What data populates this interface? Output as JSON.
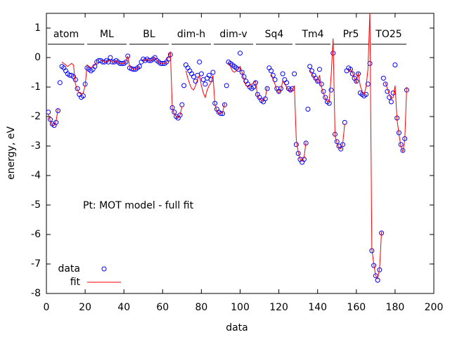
{
  "chart_data": {
    "type": "scatter",
    "xlabel": "data",
    "ylabel": "energy, eV",
    "annotations": [
      "Pt: MOT model - full fit"
    ],
    "groups": [
      "atom",
      "ML",
      "BL",
      "dim-h",
      "dim-v",
      "Sq4",
      "Tm4",
      "Pr5",
      "TO25"
    ],
    "xlim": [
      0,
      200
    ],
    "xticks": [
      0,
      20,
      40,
      60,
      80,
      100,
      120,
      140,
      160,
      180,
      200
    ],
    "ylim": [
      -8,
      1.5
    ],
    "yticks": [
      -8,
      -7,
      -6,
      -5,
      -4,
      -3,
      -2,
      -1,
      0,
      1
    ],
    "legend": "bottom-left",
    "x": [
      1,
      2,
      3,
      4,
      5,
      6,
      7,
      8,
      9,
      10,
      11,
      12,
      13,
      14,
      15,
      16,
      17,
      18,
      19,
      20,
      21,
      22,
      23,
      24,
      25,
      26,
      27,
      28,
      29,
      30,
      31,
      32,
      33,
      34,
      35,
      36,
      37,
      38,
      39,
      40,
      41,
      42,
      43,
      44,
      45,
      46,
      47,
      48,
      49,
      50,
      51,
      52,
      53,
      54,
      55,
      56,
      57,
      58,
      59,
      60,
      61,
      62,
      63,
      64,
      65,
      66,
      67,
      68,
      69,
      70,
      71,
      72,
      73,
      74,
      75,
      76,
      77,
      78,
      79,
      80,
      81,
      82,
      83,
      84,
      85,
      86,
      87,
      88,
      89,
      90,
      91,
      92,
      93,
      94,
      95,
      96,
      97,
      98,
      99,
      100,
      101,
      102,
      103,
      104,
      105,
      106,
      107,
      108,
      109,
      110,
      111,
      112,
      113,
      114,
      115,
      116,
      117,
      118,
      119,
      120,
      121,
      122,
      123,
      124,
      125,
      126,
      127,
      128,
      129,
      130,
      131,
      132,
      133,
      134,
      135,
      136,
      137,
      138,
      139,
      140,
      141,
      142,
      143,
      144,
      145,
      146,
      147,
      148,
      149,
      150,
      151,
      152,
      153,
      154,
      155,
      156,
      157,
      158,
      159,
      160,
      161,
      162,
      163,
      164,
      165,
      166,
      167,
      168,
      169,
      170,
      171,
      172,
      173,
      174,
      175,
      176,
      177,
      178,
      179,
      180,
      181,
      182,
      183,
      184,
      185,
      186
    ],
    "series": [
      {
        "name": "data",
        "color": "#0000ff",
        "marker": "circle",
        "values": [
          -1.85,
          -2.1,
          -2.25,
          -2.3,
          -2.2,
          -1.8,
          -0.85,
          -0.3,
          -0.35,
          -0.45,
          -0.55,
          -0.6,
          -0.6,
          -0.65,
          -0.75,
          -1.05,
          -1.25,
          -1.35,
          -1.3,
          -0.9,
          -0.35,
          -0.4,
          -0.45,
          -0.4,
          -0.3,
          -0.15,
          -0.1,
          -0.1,
          -0.15,
          -0.15,
          -0.1,
          -0.15,
          0.0,
          -0.15,
          -0.15,
          -0.1,
          -0.15,
          -0.2,
          -0.2,
          -0.2,
          -0.15,
          0.05,
          -0.35,
          -0.38,
          -0.4,
          -0.4,
          -0.35,
          -0.3,
          -0.15,
          -0.05,
          -0.1,
          -0.05,
          -0.1,
          -0.1,
          -0.05,
          0.0,
          -0.1,
          -0.15,
          -0.2,
          -0.2,
          -0.2,
          -0.15,
          -0.05,
          0.1,
          -1.7,
          -1.85,
          -2.0,
          -2.05,
          -1.95,
          -1.6,
          -0.95,
          -0.25,
          -0.35,
          -0.45,
          -0.55,
          -0.65,
          -0.8,
          -0.6,
          -0.15,
          -0.55,
          -0.75,
          -0.9,
          -0.7,
          -0.6,
          -0.75,
          -0.5,
          -1.55,
          -1.75,
          -1.85,
          -1.9,
          -1.9,
          -1.6,
          -0.95,
          -0.15,
          -0.2,
          -0.25,
          -0.3,
          -0.35,
          -0.4,
          0.15,
          -0.5,
          -0.65,
          -0.8,
          -0.9,
          -1.0,
          -1.05,
          -1.0,
          -0.85,
          -1.25,
          -1.35,
          -1.45,
          -1.5,
          -1.4,
          -1.05,
          -0.35,
          -0.45,
          -0.6,
          -0.75,
          -1.05,
          -1.15,
          -1.05,
          -0.55,
          -0.75,
          -0.85,
          -1.05,
          -1.1,
          -1.05,
          -0.55,
          -2.95,
          -3.25,
          -3.45,
          -3.55,
          -3.45,
          -2.9,
          -1.75,
          -0.3,
          -0.45,
          -0.6,
          -0.7,
          -0.8,
          -0.4,
          -0.9,
          -1.15,
          -1.35,
          -1.5,
          -1.55,
          -1.1,
          0.15,
          -2.6,
          -2.85,
          -3.0,
          -3.1,
          -2.95,
          -2.2,
          -0.45,
          -0.35,
          -0.4,
          -0.55,
          -0.7,
          -0.8,
          -0.55,
          -1.2,
          -1.25,
          -1.3,
          -1.25,
          -0.9,
          -0.2,
          -6.55,
          -7.05,
          -7.4,
          -7.55,
          -7.2,
          -5.95,
          -0.7,
          -0.9,
          -1.15,
          -1.35,
          -1.5,
          -1.2,
          -0.25,
          -2.05,
          -2.55,
          -2.95,
          -3.15,
          -2.75,
          -1.1
        ]
      },
      {
        "name": "fit",
        "color": "#ff0000",
        "marker": "line",
        "values": [
          -1.9,
          -2.15,
          -2.3,
          -2.3,
          -2.15,
          -1.75,
          null,
          -0.15,
          -0.2,
          -0.25,
          -0.3,
          -0.25,
          -0.2,
          -0.25,
          -0.9,
          -1.1,
          -1.2,
          -1.25,
          -1.2,
          -0.95,
          -0.25,
          -0.3,
          -0.35,
          -0.3,
          -0.25,
          -0.15,
          null,
          -0.1,
          -0.1,
          -0.15,
          -0.15,
          -0.1,
          -0.1,
          -0.15,
          -0.15,
          -0.1,
          -0.15,
          -0.2,
          -0.2,
          -0.2,
          -0.15,
          0.05,
          -0.3,
          -0.35,
          -0.4,
          -0.4,
          -0.35,
          -0.3,
          null,
          -0.05,
          -0.1,
          -0.05,
          -0.1,
          -0.1,
          -0.05,
          0.0,
          -0.1,
          -0.15,
          -0.2,
          -0.2,
          -0.2,
          -0.15,
          0.05,
          0.2,
          -1.75,
          -1.9,
          -2.0,
          -2.05,
          -1.95,
          -1.65,
          null,
          -0.45,
          -0.7,
          -0.9,
          -1.05,
          -1.1,
          -0.95,
          -0.75,
          -0.6,
          -0.95,
          -1.2,
          -1.35,
          -1.1,
          -0.95,
          -0.85,
          -0.6,
          -1.6,
          -1.8,
          -1.9,
          -1.9,
          -1.85,
          -1.55,
          null,
          -0.15,
          -0.3,
          -0.45,
          -0.5,
          -0.45,
          -0.4,
          -0.3,
          -0.5,
          -0.75,
          -0.95,
          -1.0,
          -0.95,
          -0.9,
          -0.85,
          -0.8,
          -1.3,
          -1.4,
          -1.45,
          -1.45,
          -1.35,
          -1.0,
          null,
          -0.55,
          -0.75,
          -0.9,
          -1.1,
          -1.2,
          -1.1,
          -0.8,
          -0.9,
          -1.0,
          -1.1,
          -1.15,
          -1.1,
          -0.95,
          -2.8,
          -3.2,
          -3.45,
          -3.5,
          -3.4,
          -2.85,
          null,
          -0.4,
          -0.55,
          -0.65,
          -0.75,
          -0.85,
          -0.6,
          -1.0,
          -1.2,
          -1.4,
          -1.5,
          -1.5,
          -0.6,
          0.65,
          -2.65,
          -2.9,
          -3.05,
          -3.1,
          -2.9,
          -2.25,
          null,
          -0.5,
          -0.4,
          -0.5,
          -0.7,
          -0.85,
          -0.5,
          -0.95,
          -1.15,
          -1.25,
          -1.0,
          -0.4,
          1.6,
          -6.5,
          -7.0,
          -7.4,
          -7.5,
          -7.15,
          -5.9,
          null,
          -0.85,
          -1.05,
          -1.25,
          -1.4,
          -1.35,
          -0.95,
          -2.1,
          -2.6,
          -3.0,
          -3.2,
          -2.8,
          -1.0
        ]
      }
    ]
  }
}
